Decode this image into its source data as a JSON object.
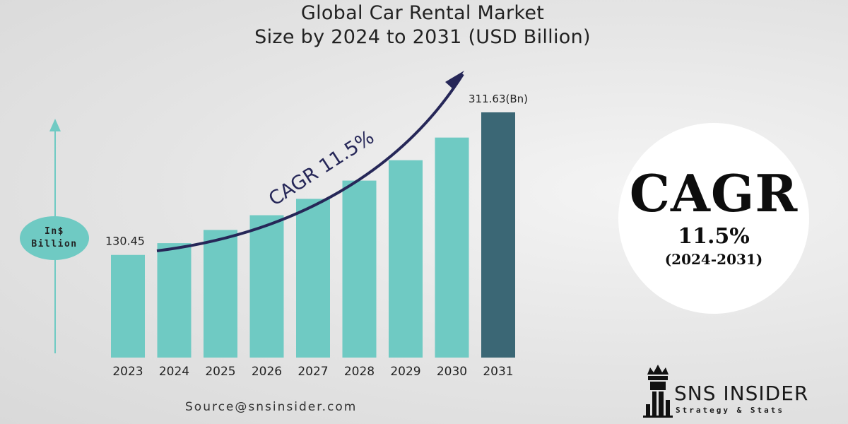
{
  "chart_data": {
    "type": "bar",
    "title_lines": [
      "Global Car Rental Market",
      "Size by 2024 to 2031 (USD Billion)"
    ],
    "categories": [
      "2023",
      "2024",
      "2025",
      "2026",
      "2027",
      "2028",
      "2029",
      "2030",
      "2031"
    ],
    "values": [
      130.45,
      145.4,
      162.2,
      180.9,
      201.7,
      224.9,
      250.8,
      279.6,
      311.63
    ],
    "data_labels": {
      "first": "130.45",
      "last": "311.63(Bn)"
    },
    "ylabel_lines": [
      "In$",
      "Billion"
    ],
    "trend_label": "CAGR 11.5%",
    "colors": {
      "bar": "#6fcac3",
      "highlight_bar": "#3b6775",
      "arrow": "#262758",
      "axis": "#6fcac3"
    }
  },
  "cagr_badge": {
    "heading": "CAGR",
    "rate": "11.5%",
    "period": "(2024-2031)"
  },
  "source": "Source@snsinsider.com",
  "logo": {
    "name": "SNS INSIDER",
    "tagline": "Strategy & Stats"
  }
}
